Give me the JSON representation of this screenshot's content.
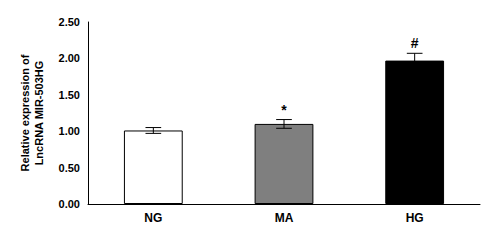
{
  "chart_data": {
    "type": "bar",
    "categories": [
      "NG",
      "MA",
      "HG"
    ],
    "values": [
      1.01,
      1.1,
      1.97
    ],
    "errors": [
      0.04,
      0.06,
      0.1
    ],
    "colors": [
      "#ffffff",
      "#7f7f7f",
      "#000000"
    ],
    "annotations": [
      null,
      "*",
      "#"
    ],
    "ylabel": "Relative expression of\nLncRNA MIR-503HG",
    "ylim": [
      0,
      2.5
    ],
    "yticks": [
      {
        "value": 0,
        "label": "0.00"
      },
      {
        "value": 0.5,
        "label": "0.50"
      },
      {
        "value": 1,
        "label": "1.00"
      },
      {
        "value": 1.5,
        "label": "1.50"
      },
      {
        "value": 2,
        "label": "2.00"
      },
      {
        "value": 2.5,
        "label": "2.50"
      }
    ],
    "grid": false
  }
}
